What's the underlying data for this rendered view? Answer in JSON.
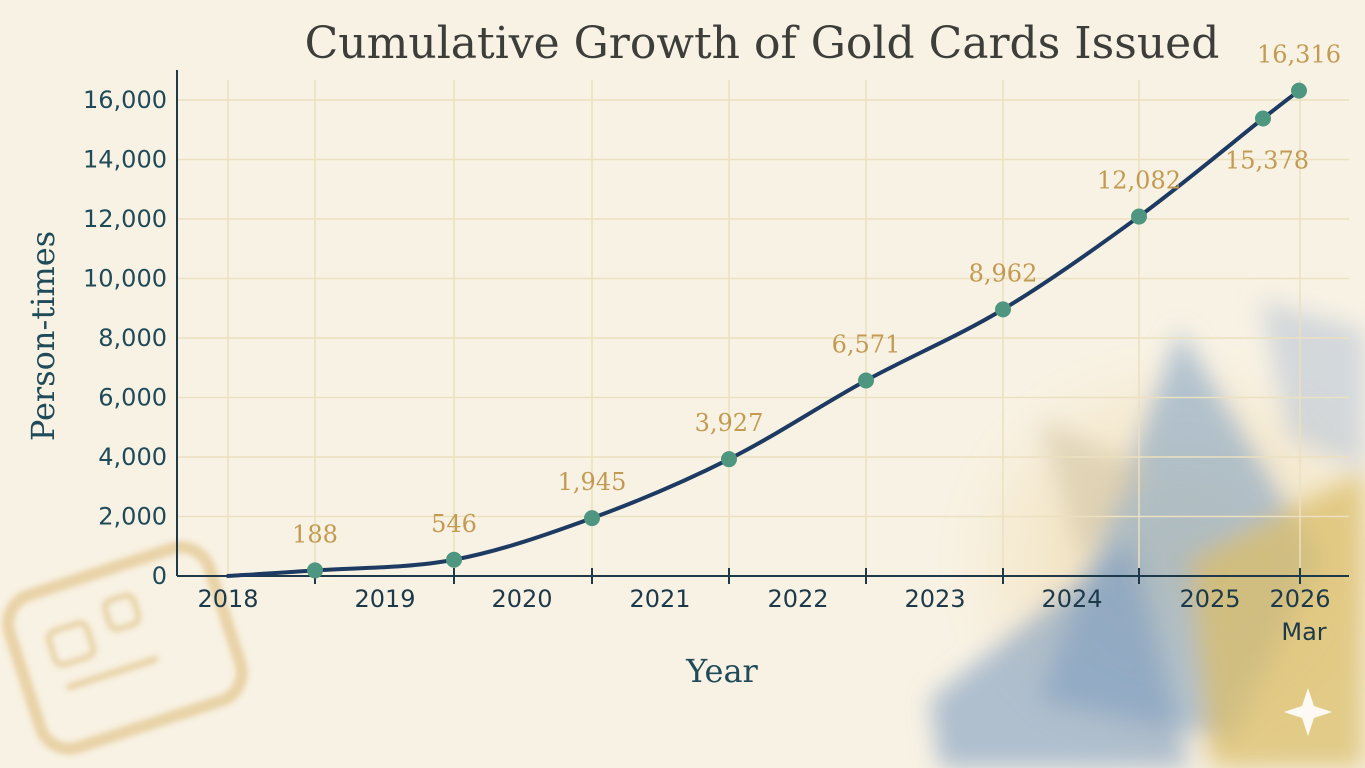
{
  "chart_data": {
    "type": "line",
    "title": "Cumulative Growth of Gold Cards Issued",
    "xlabel": "Year",
    "ylabel": "Person-times",
    "ylim": [
      0,
      16000
    ],
    "grid": true,
    "legend": "none",
    "y_ticks": [
      "0",
      "2,000",
      "4,000",
      "6,000",
      "8,000",
      "10,000",
      "12,000",
      "14,000",
      "16,000"
    ],
    "x_ticks": [
      "2018",
      "2019",
      "2020",
      "2021",
      "2022",
      "2023",
      "2024",
      "2025",
      "2026"
    ],
    "x_tick_sub": "Mar",
    "series": [
      {
        "values": [
          188,
          546,
          1945,
          3927,
          6571,
          8962,
          12082,
          15378,
          16316
        ],
        "labels": [
          "188",
          "546",
          "1,945",
          "3,927",
          "6,571",
          "8,962",
          "12,082",
          "15,378",
          "16,316"
        ]
      }
    ],
    "colors": {
      "line": "#1d3b62",
      "marker": "#4e9680",
      "label": "#c29a52",
      "axis_text": "#1f4a58",
      "grid": "#ebe0bf"
    }
  }
}
